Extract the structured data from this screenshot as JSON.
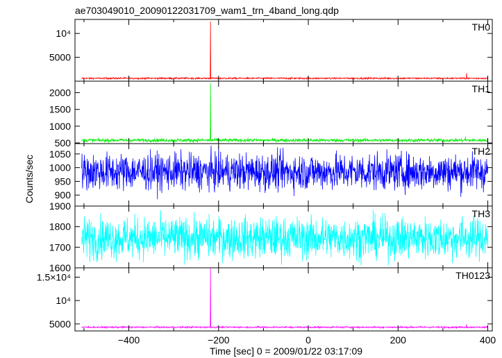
{
  "title": "ae703049010_20090122031709_wam1_trn_4band_long.qdp",
  "ylabel": "Counts/sec",
  "xlabel": "Time [sec] 0 = 2009/01/22 03:17:09",
  "chart_data": {
    "type": "line",
    "title": "ae703049010_20090122031709_wam1_trn_4band_long.qdp",
    "xlabel": "Time [sec] 0 = 2009/01/22 03:17:09",
    "ylabel": "Counts/sec",
    "xlim": [
      -520,
      410
    ],
    "xticks": [
      -400,
      -200,
      0,
      200,
      400
    ],
    "x_data_range": [
      -505,
      400
    ],
    "panels": [
      {
        "name": "TH0",
        "color": "#ff0000",
        "ylim": [
          0,
          12500
        ],
        "yticks": [
          {
            "v": 5000,
            "label": "5000"
          },
          {
            "v": 10000,
            "label": "10⁴"
          }
        ],
        "baseline": 600,
        "noise": 150,
        "spikes": [
          {
            "x": -218,
            "y": 12500
          },
          {
            "x": 353,
            "y": 1700
          }
        ]
      },
      {
        "name": "TH1",
        "color": "#00ee00",
        "ylim": [
          480,
          2280
        ],
        "yticks": [
          {
            "v": 500,
            "label": "500"
          },
          {
            "v": 1000,
            "label": "1000"
          },
          {
            "v": 1500,
            "label": "1500"
          },
          {
            "v": 2000,
            "label": "2000"
          }
        ],
        "baseline": 580,
        "noise": 45,
        "spikes": [
          {
            "x": -218,
            "y": 2280
          },
          {
            "x": 350,
            "y": 690
          }
        ]
      },
      {
        "name": "TH2",
        "color": "#0000ff",
        "ylim": [
          860,
          1080
        ],
        "yticks": [
          {
            "v": 900,
            "label": "900"
          },
          {
            "v": 950,
            "label": "950"
          },
          {
            "v": 1000,
            "label": "1000"
          },
          {
            "v": 1050,
            "label": "1050"
          }
        ],
        "baseline": 985,
        "noise": 60,
        "spikes": []
      },
      {
        "name": "TH3",
        "color": "#00ffff",
        "ylim": [
          1600,
          1900
        ],
        "yticks": [
          {
            "v": 1600,
            "label": "1600"
          },
          {
            "v": 1700,
            "label": "1700"
          },
          {
            "v": 1800,
            "label": "1800"
          },
          {
            "v": 1900,
            "label": "1900"
          }
        ],
        "baseline": 1745,
        "noise": 90,
        "spikes": []
      },
      {
        "name": "TH0123",
        "color": "#ff00ff",
        "ylim": [
          3500,
          17000
        ],
        "yticks": [
          {
            "v": 5000,
            "label": "5000"
          },
          {
            "v": 10000,
            "label": "10⁴"
          },
          {
            "v": 15000,
            "label": "1.5×10⁴"
          }
        ],
        "baseline": 4300,
        "noise": 150,
        "spikes": [
          {
            "x": -218,
            "y": 17000
          },
          {
            "x": 353,
            "y": 4950
          }
        ]
      }
    ]
  }
}
